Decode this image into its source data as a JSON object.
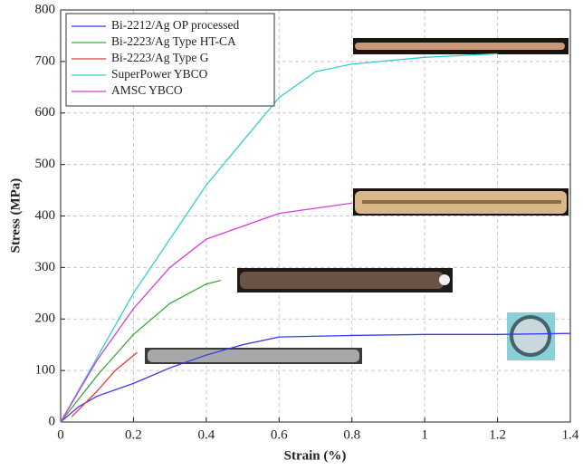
{
  "chart_data": {
    "type": "line",
    "xlabel": "Strain (%)",
    "ylabel": "Stress (MPa)",
    "xlim": [
      0,
      1.4
    ],
    "ylim": [
      0,
      800
    ],
    "xticks": [
      0,
      0.2,
      0.4,
      0.6,
      0.8,
      1,
      1.2,
      1.4
    ],
    "yticks": [
      0,
      100,
      200,
      300,
      400,
      500,
      600,
      700,
      800
    ],
    "grid": true,
    "legend": "upper-left",
    "series": [
      {
        "name": "Bi-2212/Ag OP processed",
        "color": "#3a3af0",
        "x": [
          0,
          0.05,
          0.1,
          0.2,
          0.3,
          0.4,
          0.5,
          0.6,
          0.8,
          1.0,
          1.2,
          1.4
        ],
        "values": [
          0,
          30,
          50,
          75,
          105,
          130,
          150,
          165,
          168,
          170,
          170,
          172
        ]
      },
      {
        "name": "Bi-2223/Ag Type HT-CA",
        "color": "#3aa83a",
        "x": [
          0,
          0.1,
          0.2,
          0.3,
          0.4,
          0.44
        ],
        "values": [
          0,
          90,
          170,
          230,
          268,
          275
        ]
      },
      {
        "name": "Bi-2223/Ag Type G",
        "color": "#e83a3a",
        "x": [
          0.03,
          0.1,
          0.15,
          0.21
        ],
        "values": [
          10,
          60,
          100,
          135
        ]
      },
      {
        "name": "SuperPower YBCO",
        "color": "#30d0d0",
        "x": [
          0,
          0.2,
          0.4,
          0.6,
          0.7,
          0.8,
          1.0,
          1.2
        ],
        "values": [
          0,
          250,
          460,
          630,
          680,
          695,
          708,
          715
        ]
      },
      {
        "name": "AMSC YBCO",
        "color": "#d83ad8",
        "x": [
          0,
          0.1,
          0.2,
          0.3,
          0.4,
          0.6,
          0.8
        ],
        "values": [
          0,
          120,
          220,
          300,
          355,
          405,
          425
        ]
      }
    ]
  }
}
